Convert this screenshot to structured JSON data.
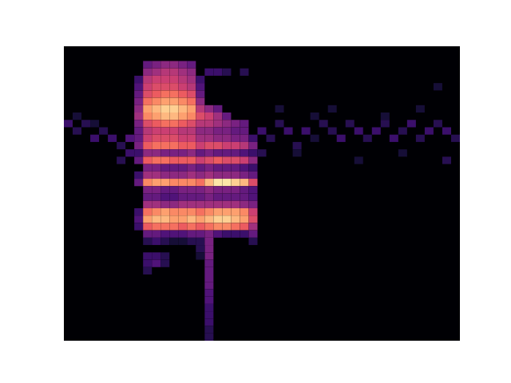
{
  "chart_data": {
    "type": "heatmap",
    "color": "magma",
    "tick_labels": false,
    "grid": false,
    "xlim": [
      0,
      45
    ],
    "ylim": [
      0,
      40
    ],
    "zlim": [
      0,
      1
    ],
    "cells": [
      [
        9,
        37,
        0.3
      ],
      [
        10,
        37,
        0.35
      ],
      [
        11,
        37,
        0.4
      ],
      [
        12,
        37,
        0.4
      ],
      [
        13,
        37,
        0.35
      ],
      [
        14,
        37,
        0.3
      ],
      [
        9,
        36,
        0.4
      ],
      [
        10,
        36,
        0.45
      ],
      [
        11,
        36,
        0.5
      ],
      [
        12,
        36,
        0.5
      ],
      [
        13,
        36,
        0.45
      ],
      [
        14,
        36,
        0.4
      ],
      [
        16,
        36,
        0.2
      ],
      [
        17,
        36,
        0.2
      ],
      [
        18,
        36,
        0.15
      ],
      [
        20,
        36,
        0.15
      ],
      [
        8,
        35,
        0.2
      ],
      [
        9,
        35,
        0.5
      ],
      [
        10,
        35,
        0.55
      ],
      [
        11,
        35,
        0.55
      ],
      [
        12,
        35,
        0.55
      ],
      [
        13,
        35,
        0.5
      ],
      [
        14,
        35,
        0.45
      ],
      [
        15,
        35,
        0.2
      ],
      [
        8,
        34,
        0.25
      ],
      [
        9,
        34,
        0.55
      ],
      [
        10,
        34,
        0.6
      ],
      [
        11,
        34,
        0.6
      ],
      [
        12,
        34,
        0.6
      ],
      [
        13,
        34,
        0.55
      ],
      [
        14,
        34,
        0.5
      ],
      [
        15,
        34,
        0.25
      ],
      [
        42,
        34,
        0.1
      ],
      [
        8,
        33,
        0.3
      ],
      [
        9,
        33,
        0.6
      ],
      [
        10,
        33,
        0.65
      ],
      [
        11,
        33,
        0.7
      ],
      [
        12,
        33,
        0.7
      ],
      [
        13,
        33,
        0.65
      ],
      [
        14,
        33,
        0.6
      ],
      [
        15,
        33,
        0.3
      ],
      [
        8,
        32,
        0.35
      ],
      [
        9,
        32,
        0.7
      ],
      [
        10,
        32,
        0.75
      ],
      [
        11,
        32,
        0.8
      ],
      [
        12,
        32,
        0.8
      ],
      [
        13,
        32,
        0.75
      ],
      [
        14,
        32,
        0.7
      ],
      [
        15,
        32,
        0.4
      ],
      [
        8,
        31,
        0.4
      ],
      [
        9,
        31,
        0.8
      ],
      [
        10,
        31,
        0.85
      ],
      [
        11,
        31,
        0.9
      ],
      [
        12,
        31,
        0.9
      ],
      [
        13,
        31,
        0.85
      ],
      [
        14,
        31,
        0.8
      ],
      [
        15,
        31,
        0.5
      ],
      [
        16,
        31,
        0.4
      ],
      [
        17,
        31,
        0.3
      ],
      [
        24,
        31,
        0.1
      ],
      [
        30,
        31,
        0.1
      ],
      [
        40,
        31,
        0.1
      ],
      [
        8,
        30,
        0.45
      ],
      [
        9,
        30,
        0.75
      ],
      [
        10,
        30,
        0.8
      ],
      [
        11,
        30,
        0.85
      ],
      [
        12,
        30,
        0.85
      ],
      [
        13,
        30,
        0.8
      ],
      [
        14,
        30,
        0.75
      ],
      [
        15,
        30,
        0.6
      ],
      [
        16,
        30,
        0.55
      ],
      [
        17,
        30,
        0.45
      ],
      [
        18,
        30,
        0.3
      ],
      [
        1,
        30,
        0.1
      ],
      [
        28,
        30,
        0.1
      ],
      [
        36,
        30,
        0.1
      ],
      [
        8,
        29,
        0.35
      ],
      [
        9,
        29,
        0.6
      ],
      [
        10,
        29,
        0.65
      ],
      [
        11,
        29,
        0.7
      ],
      [
        12,
        29,
        0.7
      ],
      [
        13,
        29,
        0.65
      ],
      [
        14,
        29,
        0.6
      ],
      [
        15,
        29,
        0.5
      ],
      [
        16,
        29,
        0.5
      ],
      [
        17,
        29,
        0.45
      ],
      [
        18,
        29,
        0.4
      ],
      [
        19,
        29,
        0.35
      ],
      [
        20,
        29,
        0.3
      ],
      [
        0,
        29,
        0.2
      ],
      [
        2,
        29,
        0.15
      ],
      [
        3,
        29,
        0.1
      ],
      [
        24,
        29,
        0.15
      ],
      [
        29,
        29,
        0.15
      ],
      [
        32,
        29,
        0.15
      ],
      [
        36,
        29,
        0.15
      ],
      [
        39,
        29,
        0.2
      ],
      [
        42,
        29,
        0.15
      ],
      [
        8,
        28,
        0.3
      ],
      [
        9,
        28,
        0.5
      ],
      [
        10,
        28,
        0.55
      ],
      [
        11,
        28,
        0.55
      ],
      [
        12,
        28,
        0.55
      ],
      [
        13,
        28,
        0.5
      ],
      [
        14,
        28,
        0.5
      ],
      [
        15,
        28,
        0.4
      ],
      [
        16,
        28,
        0.4
      ],
      [
        17,
        28,
        0.35
      ],
      [
        18,
        28,
        0.35
      ],
      [
        19,
        28,
        0.3
      ],
      [
        20,
        28,
        0.3
      ],
      [
        1,
        28,
        0.15
      ],
      [
        4,
        28,
        0.15
      ],
      [
        22,
        28,
        0.2
      ],
      [
        25,
        28,
        0.2
      ],
      [
        27,
        28,
        0.2
      ],
      [
        30,
        28,
        0.15
      ],
      [
        33,
        28,
        0.2
      ],
      [
        35,
        28,
        0.2
      ],
      [
        38,
        28,
        0.15
      ],
      [
        41,
        28,
        0.2
      ],
      [
        43,
        28,
        0.2
      ],
      [
        8,
        27,
        0.3
      ],
      [
        9,
        27,
        0.55
      ],
      [
        10,
        27,
        0.6
      ],
      [
        11,
        27,
        0.6
      ],
      [
        12,
        27,
        0.6
      ],
      [
        13,
        27,
        0.55
      ],
      [
        14,
        27,
        0.55
      ],
      [
        15,
        27,
        0.45
      ],
      [
        16,
        27,
        0.45
      ],
      [
        17,
        27,
        0.4
      ],
      [
        18,
        27,
        0.4
      ],
      [
        19,
        27,
        0.35
      ],
      [
        20,
        27,
        0.35
      ],
      [
        21,
        27,
        0.2
      ],
      [
        3,
        27,
        0.2
      ],
      [
        5,
        27,
        0.2
      ],
      [
        7,
        27,
        0.25
      ],
      [
        23,
        27,
        0.15
      ],
      [
        28,
        27,
        0.1
      ],
      [
        31,
        27,
        0.2
      ],
      [
        34,
        27,
        0.15
      ],
      [
        37,
        27,
        0.2
      ],
      [
        40,
        27,
        0.15
      ],
      [
        44,
        27,
        0.15
      ],
      [
        8,
        26,
        0.35
      ],
      [
        9,
        26,
        0.65
      ],
      [
        10,
        26,
        0.7
      ],
      [
        11,
        26,
        0.7
      ],
      [
        12,
        26,
        0.7
      ],
      [
        13,
        26,
        0.65
      ],
      [
        14,
        26,
        0.65
      ],
      [
        15,
        26,
        0.55
      ],
      [
        16,
        26,
        0.6
      ],
      [
        17,
        26,
        0.6
      ],
      [
        18,
        26,
        0.55
      ],
      [
        19,
        26,
        0.55
      ],
      [
        20,
        26,
        0.5
      ],
      [
        21,
        26,
        0.35
      ],
      [
        6,
        26,
        0.15
      ],
      [
        26,
        26,
        0.15
      ],
      [
        8,
        25,
        0.2
      ],
      [
        9,
        25,
        0.4
      ],
      [
        10,
        25,
        0.4
      ],
      [
        11,
        25,
        0.35
      ],
      [
        12,
        25,
        0.35
      ],
      [
        13,
        25,
        0.35
      ],
      [
        14,
        25,
        0.4
      ],
      [
        15,
        25,
        0.3
      ],
      [
        16,
        25,
        0.35
      ],
      [
        17,
        25,
        0.3
      ],
      [
        18,
        25,
        0.3
      ],
      [
        19,
        25,
        0.3
      ],
      [
        20,
        25,
        0.25
      ],
      [
        21,
        25,
        0.2
      ],
      [
        7,
        25,
        0.2
      ],
      [
        22,
        25,
        0.15
      ],
      [
        26,
        25,
        0.1
      ],
      [
        38,
        25,
        0.1
      ],
      [
        8,
        24,
        0.3
      ],
      [
        9,
        24,
        0.65
      ],
      [
        10,
        24,
        0.7
      ],
      [
        11,
        24,
        0.7
      ],
      [
        12,
        24,
        0.65
      ],
      [
        13,
        24,
        0.65
      ],
      [
        14,
        24,
        0.65
      ],
      [
        15,
        24,
        0.55
      ],
      [
        16,
        24,
        0.6
      ],
      [
        17,
        24,
        0.65
      ],
      [
        18,
        24,
        0.6
      ],
      [
        19,
        24,
        0.6
      ],
      [
        20,
        24,
        0.55
      ],
      [
        21,
        24,
        0.4
      ],
      [
        6,
        24,
        0.15
      ],
      [
        33,
        24,
        0.1
      ],
      [
        43,
        24,
        0.15
      ],
      [
        9,
        23,
        0.35
      ],
      [
        10,
        23,
        0.35
      ],
      [
        11,
        23,
        0.3
      ],
      [
        12,
        23,
        0.3
      ],
      [
        13,
        23,
        0.3
      ],
      [
        14,
        23,
        0.35
      ],
      [
        15,
        23,
        0.3
      ],
      [
        16,
        23,
        0.35
      ],
      [
        17,
        23,
        0.3
      ],
      [
        18,
        23,
        0.3
      ],
      [
        19,
        23,
        0.3
      ],
      [
        20,
        23,
        0.25
      ],
      [
        21,
        23,
        0.2
      ],
      [
        8,
        22,
        0.2
      ],
      [
        9,
        22,
        0.45
      ],
      [
        10,
        22,
        0.45
      ],
      [
        11,
        22,
        0.4
      ],
      [
        12,
        22,
        0.4
      ],
      [
        13,
        22,
        0.4
      ],
      [
        14,
        22,
        0.45
      ],
      [
        15,
        22,
        0.4
      ],
      [
        16,
        22,
        0.45
      ],
      [
        17,
        22,
        0.4
      ],
      [
        18,
        22,
        0.4
      ],
      [
        19,
        22,
        0.4
      ],
      [
        20,
        22,
        0.35
      ],
      [
        21,
        22,
        0.3
      ],
      [
        8,
        21,
        0.3
      ],
      [
        9,
        21,
        0.75
      ],
      [
        10,
        21,
        0.8
      ],
      [
        11,
        21,
        0.8
      ],
      [
        12,
        21,
        0.75
      ],
      [
        13,
        21,
        0.75
      ],
      [
        14,
        21,
        0.75
      ],
      [
        15,
        21,
        0.7
      ],
      [
        16,
        21,
        0.85
      ],
      [
        17,
        21,
        0.95
      ],
      [
        18,
        21,
        0.95
      ],
      [
        19,
        21,
        0.9
      ],
      [
        20,
        21,
        0.85
      ],
      [
        21,
        21,
        0.6
      ],
      [
        9,
        20,
        0.35
      ],
      [
        10,
        20,
        0.35
      ],
      [
        11,
        20,
        0.3
      ],
      [
        12,
        20,
        0.3
      ],
      [
        13,
        20,
        0.35
      ],
      [
        14,
        20,
        0.35
      ],
      [
        15,
        20,
        0.35
      ],
      [
        16,
        20,
        0.4
      ],
      [
        17,
        20,
        0.35
      ],
      [
        18,
        20,
        0.35
      ],
      [
        19,
        20,
        0.35
      ],
      [
        20,
        20,
        0.3
      ],
      [
        21,
        20,
        0.25
      ],
      [
        9,
        19,
        0.3
      ],
      [
        10,
        19,
        0.3
      ],
      [
        11,
        19,
        0.25
      ],
      [
        12,
        19,
        0.25
      ],
      [
        13,
        19,
        0.3
      ],
      [
        14,
        19,
        0.3
      ],
      [
        15,
        19,
        0.3
      ],
      [
        16,
        19,
        0.35
      ],
      [
        17,
        19,
        0.3
      ],
      [
        18,
        19,
        0.3
      ],
      [
        19,
        19,
        0.3
      ],
      [
        20,
        19,
        0.3
      ],
      [
        21,
        19,
        0.25
      ],
      [
        9,
        18,
        0.45
      ],
      [
        10,
        18,
        0.45
      ],
      [
        11,
        18,
        0.4
      ],
      [
        12,
        18,
        0.4
      ],
      [
        13,
        18,
        0.45
      ],
      [
        14,
        18,
        0.45
      ],
      [
        15,
        18,
        0.45
      ],
      [
        16,
        18,
        0.45
      ],
      [
        17,
        18,
        0.45
      ],
      [
        18,
        18,
        0.45
      ],
      [
        19,
        18,
        0.45
      ],
      [
        20,
        18,
        0.4
      ],
      [
        21,
        18,
        0.35
      ],
      [
        8,
        17,
        0.2
      ],
      [
        9,
        17,
        0.7
      ],
      [
        10,
        17,
        0.75
      ],
      [
        11,
        17,
        0.8
      ],
      [
        12,
        17,
        0.75
      ],
      [
        13,
        17,
        0.75
      ],
      [
        14,
        17,
        0.75
      ],
      [
        15,
        17,
        0.7
      ],
      [
        16,
        17,
        0.75
      ],
      [
        17,
        17,
        0.8
      ],
      [
        18,
        17,
        0.8
      ],
      [
        19,
        17,
        0.8
      ],
      [
        20,
        17,
        0.75
      ],
      [
        21,
        17,
        0.55
      ],
      [
        8,
        16,
        0.25
      ],
      [
        9,
        16,
        0.8
      ],
      [
        10,
        16,
        0.85
      ],
      [
        11,
        16,
        0.85
      ],
      [
        12,
        16,
        0.8
      ],
      [
        13,
        16,
        0.8
      ],
      [
        14,
        16,
        0.85
      ],
      [
        15,
        16,
        0.8
      ],
      [
        16,
        16,
        0.85
      ],
      [
        17,
        16,
        0.9
      ],
      [
        18,
        16,
        0.9
      ],
      [
        19,
        16,
        0.85
      ],
      [
        20,
        16,
        0.8
      ],
      [
        21,
        16,
        0.6
      ],
      [
        8,
        15,
        0.2
      ],
      [
        9,
        15,
        0.65
      ],
      [
        10,
        15,
        0.7
      ],
      [
        11,
        15,
        0.7
      ],
      [
        12,
        15,
        0.7
      ],
      [
        13,
        15,
        0.65
      ],
      [
        14,
        15,
        0.7
      ],
      [
        15,
        15,
        0.65
      ],
      [
        16,
        15,
        0.7
      ],
      [
        17,
        15,
        0.75
      ],
      [
        18,
        15,
        0.75
      ],
      [
        19,
        15,
        0.7
      ],
      [
        20,
        15,
        0.65
      ],
      [
        21,
        15,
        0.45
      ],
      [
        9,
        14,
        0.3
      ],
      [
        10,
        14,
        0.3
      ],
      [
        11,
        14,
        0.25
      ],
      [
        12,
        14,
        0.25
      ],
      [
        13,
        14,
        0.25
      ],
      [
        14,
        14,
        0.3
      ],
      [
        15,
        14,
        0.3
      ],
      [
        16,
        14,
        0.35
      ],
      [
        17,
        14,
        0.25
      ],
      [
        18,
        14,
        0.2
      ],
      [
        19,
        14,
        0.2
      ],
      [
        20,
        14,
        0.2
      ],
      [
        21,
        14,
        0.3
      ],
      [
        9,
        13,
        0.15
      ],
      [
        10,
        13,
        0.2
      ],
      [
        11,
        13,
        0.15
      ],
      [
        12,
        13,
        0.1
      ],
      [
        13,
        13,
        0.1
      ],
      [
        14,
        13,
        0.15
      ],
      [
        15,
        13,
        0.15
      ],
      [
        16,
        13,
        0.35
      ],
      [
        21,
        13,
        0.15
      ],
      [
        16,
        12,
        0.35
      ],
      [
        15,
        12,
        0.15
      ],
      [
        16,
        11,
        0.35
      ],
      [
        15,
        11,
        0.1
      ],
      [
        16,
        10,
        0.3
      ],
      [
        16,
        9,
        0.3
      ],
      [
        16,
        8,
        0.3
      ],
      [
        16,
        7,
        0.3
      ],
      [
        16,
        6,
        0.25
      ],
      [
        16,
        5,
        0.25
      ],
      [
        16,
        4,
        0.2
      ],
      [
        16,
        3,
        0.2
      ],
      [
        16,
        2,
        0.2
      ],
      [
        16,
        1,
        0.15
      ],
      [
        16,
        0,
        0.15
      ],
      [
        9,
        11,
        0.2
      ],
      [
        10,
        11,
        0.2
      ],
      [
        11,
        11,
        0.15
      ],
      [
        9,
        10,
        0.2
      ],
      [
        10,
        10,
        0.25
      ],
      [
        11,
        10,
        0.15
      ],
      [
        9,
        9,
        0.15
      ]
    ]
  }
}
